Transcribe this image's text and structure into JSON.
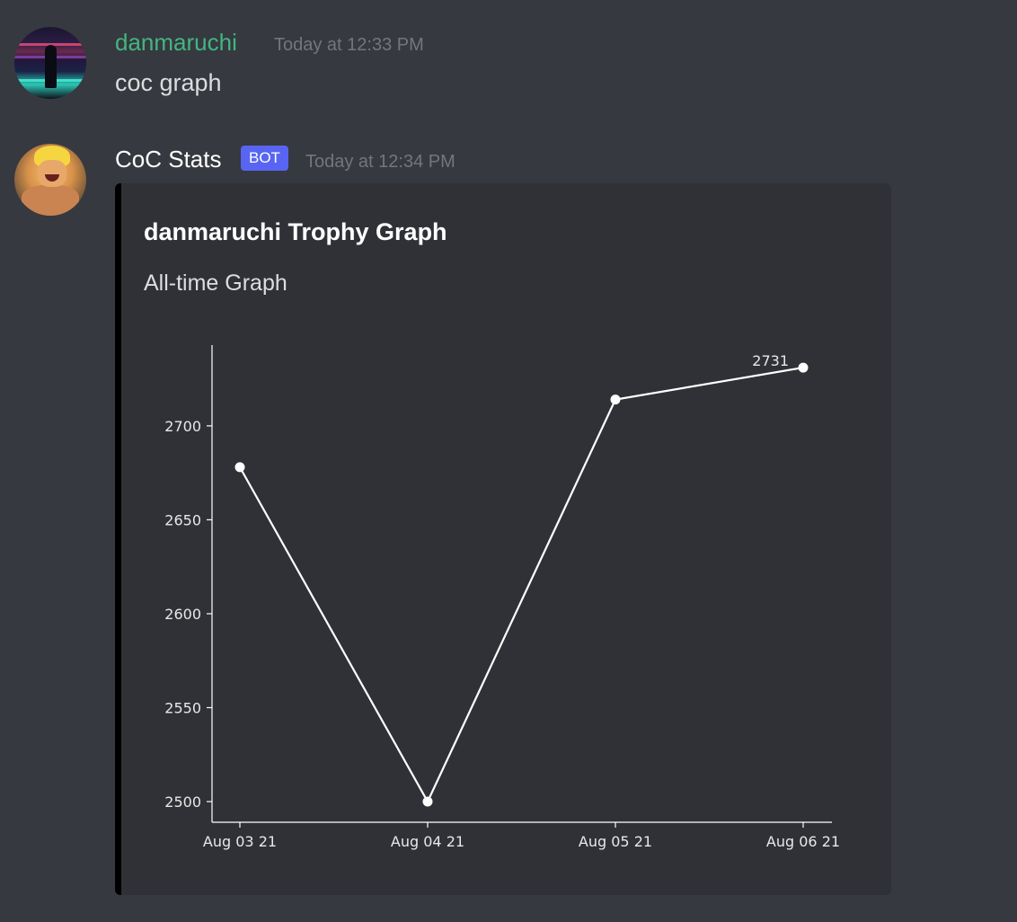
{
  "messages": [
    {
      "username": "danmaruchi",
      "timestamp": "Today at 12:33 PM",
      "text": "coc graph",
      "username_color": "#43b581"
    },
    {
      "username": "CoC Stats",
      "badge": "BOT",
      "timestamp": "Today at 12:34 PM",
      "embed": {
        "title": "danmaruchi Trophy Graph",
        "description": "All-time Graph",
        "stripe_color": "#000000"
      }
    }
  ],
  "chart_data": {
    "type": "line",
    "x": [
      "Aug 03 21",
      "Aug 04 21",
      "Aug 05 21",
      "Aug 06 21"
    ],
    "series": [
      {
        "values": [
          2678,
          2500,
          2714,
          2731
        ]
      }
    ],
    "yticks": [
      2500,
      2550,
      2600,
      2650,
      2700
    ],
    "ylim": [
      2489,
      2743
    ],
    "data_label": {
      "index": 3,
      "text": "2731"
    },
    "grid": false,
    "line_color": "#ffffff",
    "background": "#2f3136",
    "title": "",
    "xlabel": "",
    "ylabel": ""
  },
  "colors": {
    "background": "#36393f",
    "embed_background": "#2f3136",
    "timestamp": "#72767d",
    "badge": "#5865f2"
  }
}
